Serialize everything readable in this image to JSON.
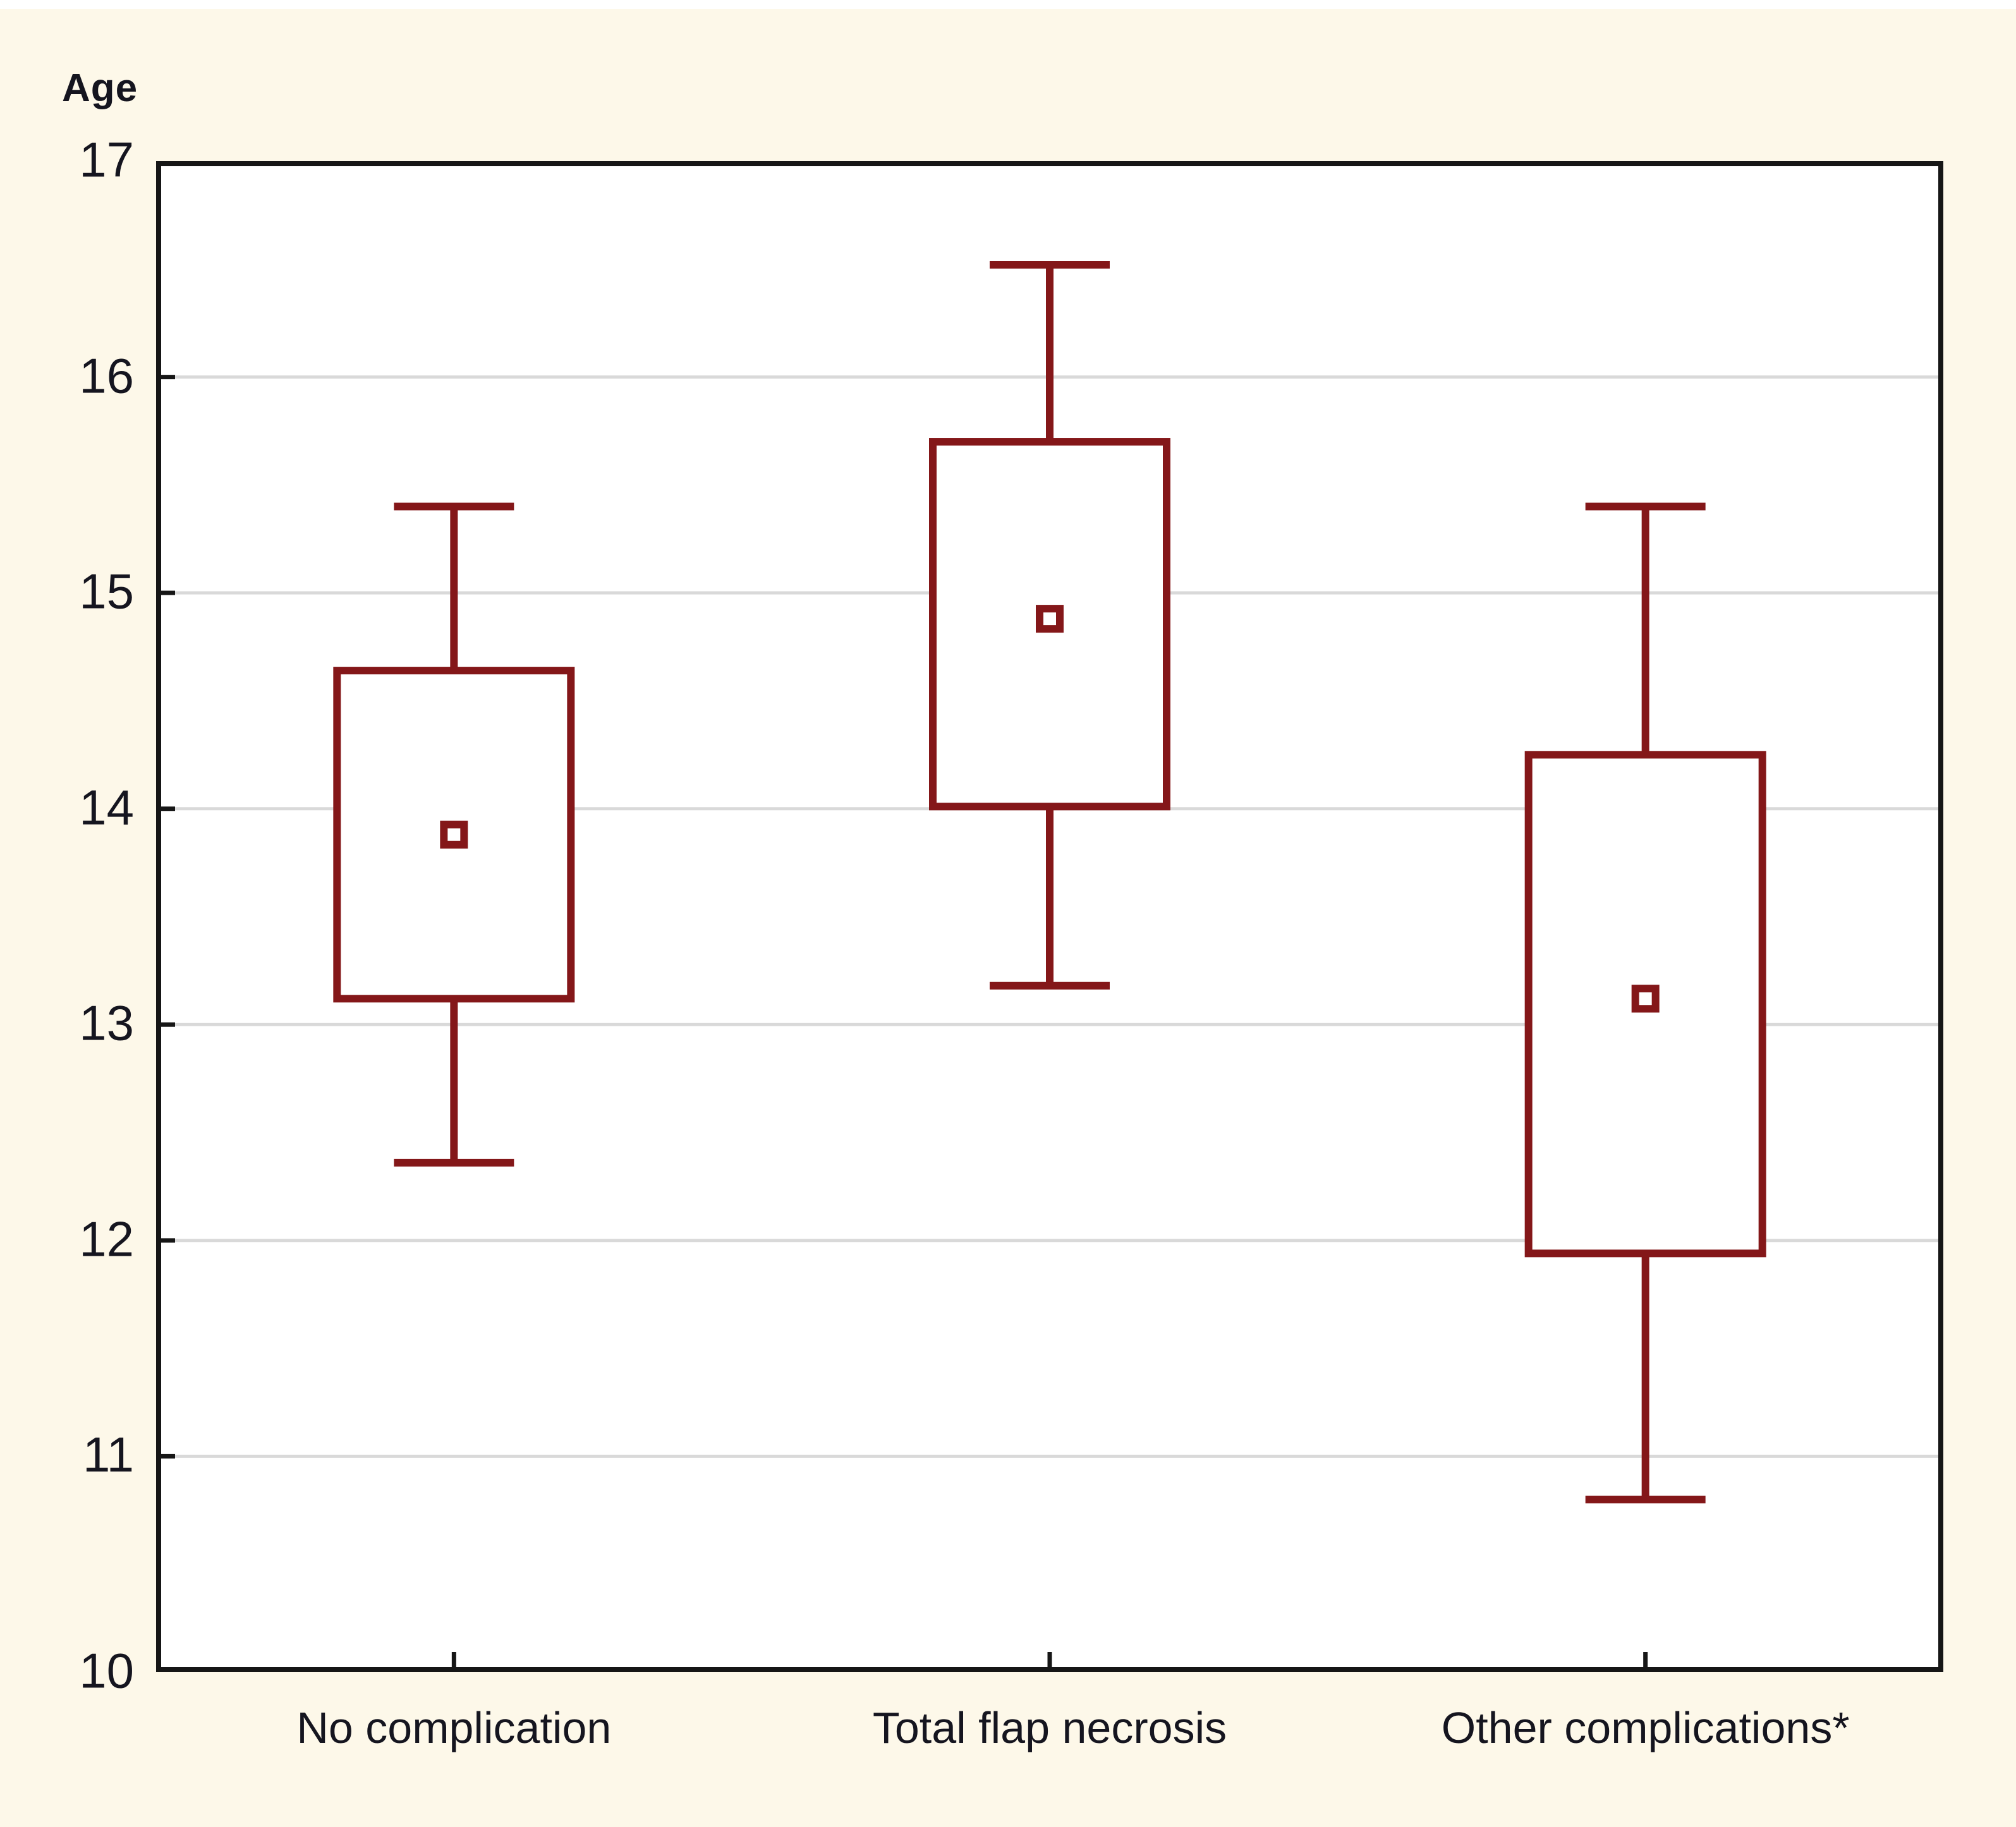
{
  "chart_data": {
    "type": "box",
    "title": "",
    "ylabel": "Age",
    "xlabel": "",
    "ylim": [
      10,
      17
    ],
    "yticks": [
      17,
      16,
      15,
      14,
      13,
      12,
      11,
      10
    ],
    "gridlines": [
      16,
      15,
      14,
      13,
      12,
      11
    ],
    "grid": "horizontal",
    "legend": "none",
    "marker_style": "hollow-square-mean",
    "categories": [
      "No complication",
      "Total flap necrosis",
      "Other complications*"
    ],
    "series": [
      {
        "category": "No complication",
        "whisker_low": 12.36,
        "box_low": 13.12,
        "mean": 13.88,
        "box_high": 14.64,
        "whisker_high": 15.4
      },
      {
        "category": "Total flap necrosis",
        "whisker_low": 13.18,
        "box_low": 14.01,
        "mean": 14.88,
        "box_high": 15.7,
        "whisker_high": 16.52
      },
      {
        "category": "Other complications*",
        "whisker_low": 10.8,
        "box_low": 11.94,
        "mean": 13.12,
        "box_high": 14.25,
        "whisker_high": 15.4
      }
    ],
    "colors": {
      "box": "#841719",
      "box_fill": "#ffffff",
      "grid": "#d9d9d9",
      "axis": "#161616",
      "text": "#15151f",
      "background": "#fdf8e9",
      "plot_background": "#ffffff"
    }
  }
}
